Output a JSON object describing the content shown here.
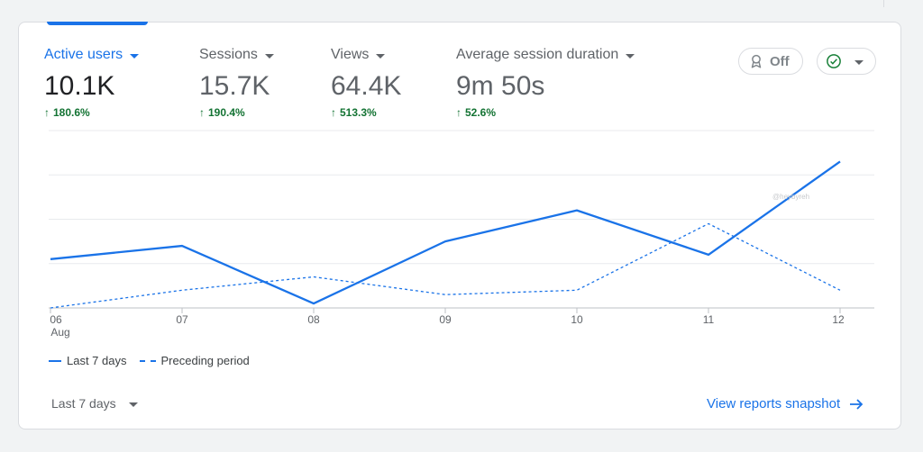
{
  "metrics": [
    {
      "label": "Active users",
      "value": "10.1K",
      "change": "180.6%"
    },
    {
      "label": "Sessions",
      "value": "15.7K",
      "change": "190.4%"
    },
    {
      "label": "Views",
      "value": "64.4K",
      "change": "513.3%"
    },
    {
      "label": "Average session duration",
      "value": "9m 50s",
      "change": "52.6%"
    }
  ],
  "controls": {
    "badge_label": "Off",
    "badge_icon": "award-icon",
    "status_icon": "check-circle-icon"
  },
  "chart_data": {
    "type": "line",
    "x": [
      "06",
      "07",
      "08",
      "09",
      "10",
      "11",
      "12"
    ],
    "x_sublabel": "Aug",
    "ylim": [
      0,
      4
    ],
    "grid": true,
    "legend_position": "bottom-left",
    "series": [
      {
        "name": "Last 7 days",
        "style": "solid",
        "color": "#1a73e8",
        "values": [
          1.1,
          1.4,
          0.1,
          1.5,
          2.2,
          1.2,
          3.3
        ]
      },
      {
        "name": "Preceding period",
        "style": "dashed",
        "color": "#1a73e8",
        "values": [
          0.0,
          0.4,
          0.7,
          0.3,
          0.4,
          1.9,
          0.4
        ]
      }
    ]
  },
  "footer": {
    "range_label": "Last 7 days",
    "snapshot_link": "View reports snapshot"
  },
  "watermark": "@heybyreh"
}
